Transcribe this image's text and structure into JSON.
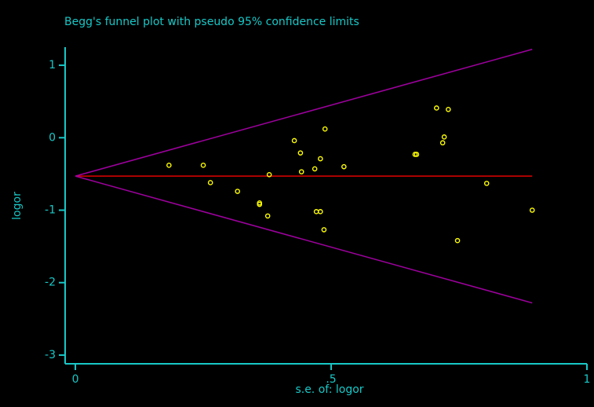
{
  "chart_data": {
    "type": "scatter",
    "title": "Begg's funnel plot with pseudo 95% confidence limits",
    "xlabel": "s.e. of: logor",
    "ylabel": "logor",
    "xlim": [
      -0.02,
      1
    ],
    "ylim": [
      -3.12,
      1.25
    ],
    "xticks": [
      0,
      {
        "value": 0.5,
        "label": ".5"
      },
      1
    ],
    "yticks": [
      1,
      0,
      -1,
      -2,
      -3
    ],
    "points": {
      "color": "#ffff00",
      "x": [
        0.183,
        0.25,
        0.264,
        0.317,
        0.36,
        0.36,
        0.379,
        0.376,
        0.428,
        0.44,
        0.442,
        0.468,
        0.471,
        0.479,
        0.479,
        0.488,
        0.486,
        0.525,
        0.664,
        0.667,
        0.706,
        0.718,
        0.721,
        0.729,
        0.747,
        0.804,
        0.893
      ],
      "values": [
        -0.38,
        -0.38,
        -0.62,
        -0.74,
        -0.9,
        -0.92,
        -0.51,
        -1.08,
        -0.04,
        -0.21,
        -0.47,
        -0.43,
        -1.02,
        -1.02,
        -0.29,
        0.12,
        -1.27,
        -0.4,
        -0.23,
        -0.23,
        0.41,
        -0.07,
        0.01,
        0.39,
        -1.42,
        -0.63,
        -1.0
      ]
    },
    "lines": [
      {
        "color": "#e00000",
        "x": [
          0,
          0.893
        ],
        "values": [
          -0.53,
          -0.53
        ]
      },
      {
        "color": "#a000a0",
        "x": [
          0,
          0.893
        ],
        "values": [
          -0.53,
          1.22
        ]
      },
      {
        "color": "#a000a0",
        "x": [
          0,
          0.893
        ],
        "values": [
          -0.53,
          -2.28
        ]
      }
    ]
  }
}
